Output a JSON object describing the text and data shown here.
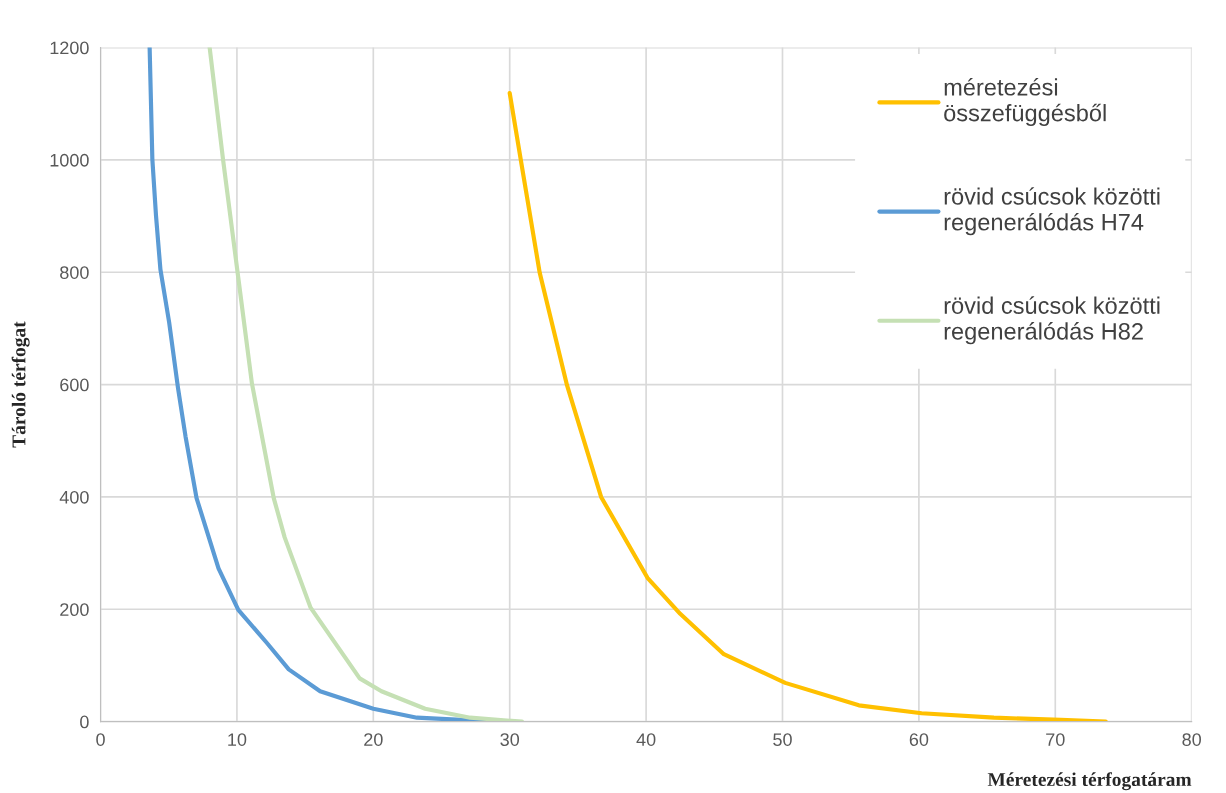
{
  "chart_data": {
    "type": "line",
    "xlabel": "Méretezési térfogatáram",
    "ylabel": "Tároló térfogat",
    "xlim": [
      0,
      80
    ],
    "xticks": [
      0,
      10,
      20,
      30,
      40,
      50,
      60,
      70,
      80
    ],
    "ylim": [
      0,
      1200
    ],
    "yticks": [
      0,
      200,
      400,
      600,
      800,
      1000,
      1200
    ],
    "grid": true,
    "legend": "top right",
    "marker": "none",
    "line_style": "solid",
    "series": [
      {
        "name": "méretezési\nösszefüggésből",
        "color": "#ffc000",
        "x": [
          30.0,
          30.8,
          32.2,
          34.2,
          36.7,
          40.1,
          42.5,
          45.7,
          50.2,
          55.6,
          60.2,
          65.5,
          70.4,
          73.7
        ],
        "values": [
          1119,
          1002,
          799,
          599,
          400,
          256,
          192,
          120,
          69,
          29,
          15,
          7,
          3,
          0
        ]
      },
      {
        "name": "rövid csúcsok közötti\nregenerálódás H74",
        "color": "#5b9bd5",
        "x": [
          3.6,
          3.8,
          4.07,
          4.39,
          5.03,
          5.68,
          6.23,
          7.04,
          8.65,
          10.1,
          12.2,
          13.8,
          16.1,
          20.0,
          23.2,
          29.0
        ],
        "values": [
          1200,
          1001,
          900,
          805,
          711,
          594,
          508,
          398,
          273,
          199,
          140,
          93,
          54,
          23,
          7,
          0
        ]
      },
      {
        "name": "rövid csúcsok közötti\nregenerálódás H82",
        "color": "#c5e0b4",
        "x": [
          8.0,
          8.98,
          10.1,
          11.1,
          12.7,
          13.5,
          15.4,
          19.0,
          20.6,
          23.8,
          27.1,
          30.9
        ],
        "values": [
          1200,
          1001,
          790,
          602,
          398,
          328,
          203,
          77,
          54,
          23,
          7,
          0
        ]
      }
    ]
  }
}
